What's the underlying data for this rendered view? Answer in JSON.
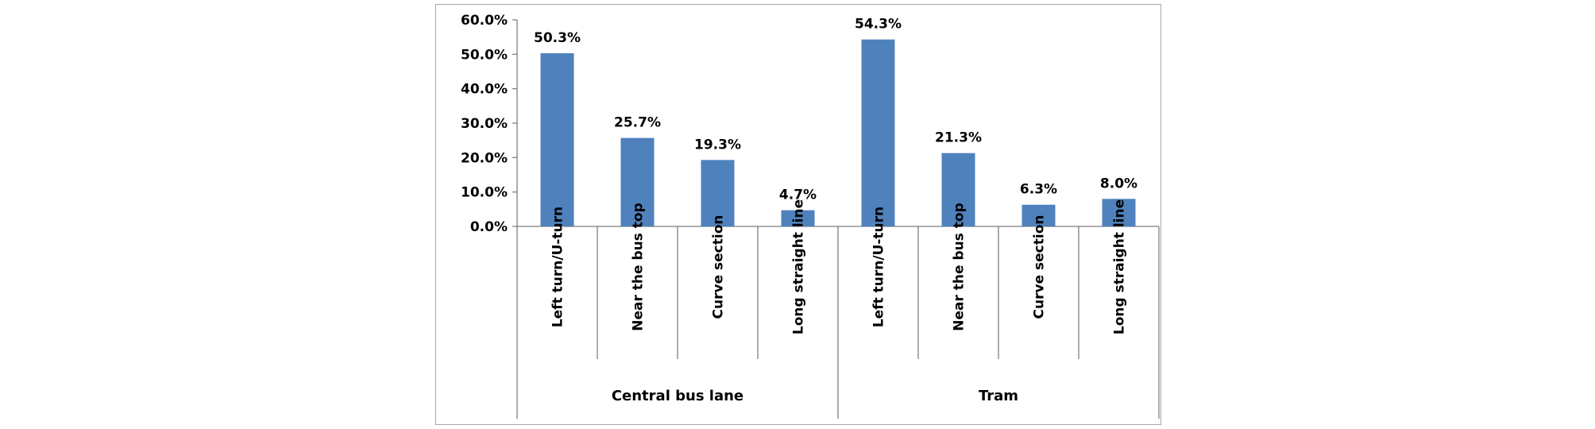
{
  "chart_data": {
    "type": "bar",
    "groups": [
      {
        "name": "Central bus lane",
        "categories": [
          "Left turn/U-turn",
          "Near the bus top",
          "Curve section",
          "Long straight line"
        ],
        "values": [
          50.3,
          25.7,
          19.3,
          4.7
        ],
        "value_labels": [
          "50.3%",
          "25.7%",
          "19.3%",
          "4.7%"
        ]
      },
      {
        "name": "Tram",
        "categories": [
          "Left turn/U-turn",
          "Near the bus top",
          "Curve section",
          "Long straight line"
        ],
        "values": [
          54.3,
          21.3,
          6.3,
          8.0
        ],
        "value_labels": [
          "54.3%",
          "21.3%",
          "6.3%",
          "8.0%"
        ]
      }
    ],
    "y_ticks": [
      "0.0%",
      "10.0%",
      "20.0%",
      "30.0%",
      "40.0%",
      "50.0%",
      "60.0%"
    ],
    "ylim": [
      0,
      60
    ],
    "grid": false,
    "legend": "none",
    "bar_color": "#4f81bd"
  }
}
